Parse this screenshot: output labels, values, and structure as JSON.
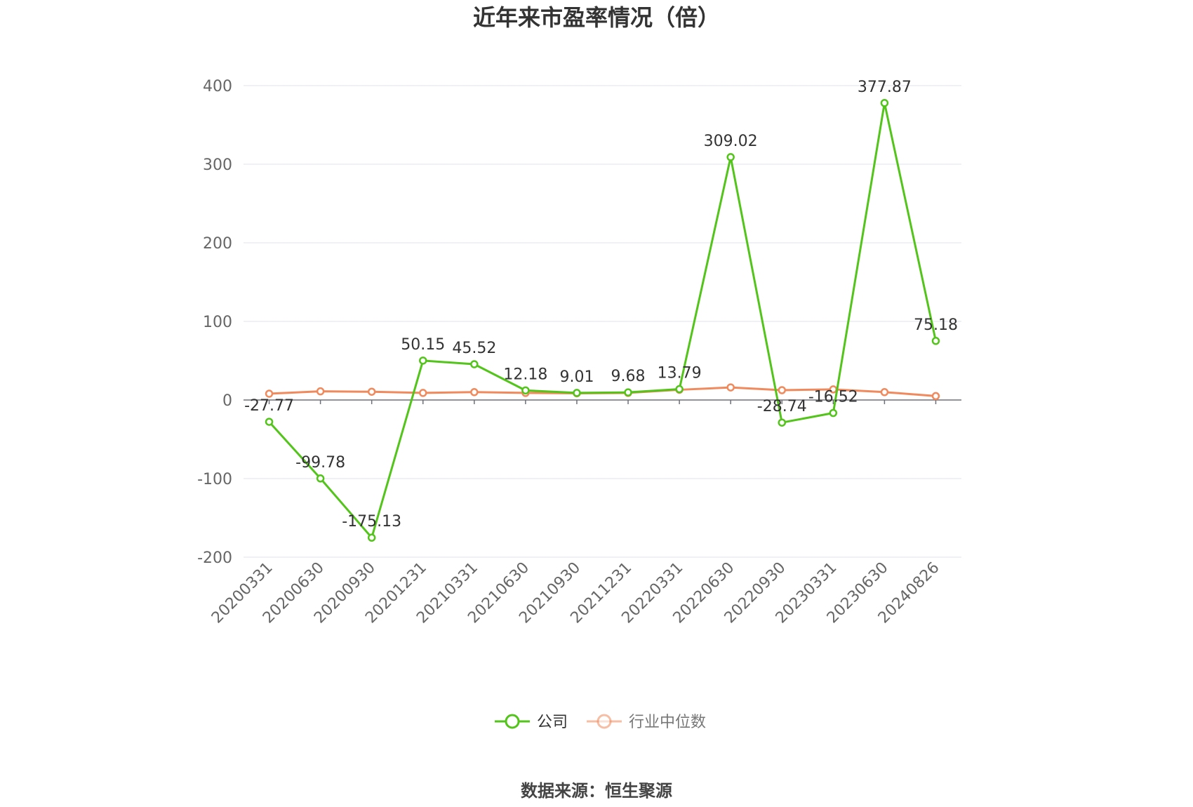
{
  "chart_data": {
    "type": "line",
    "title": "近年来市盈率情况（倍）",
    "categories": [
      "20200331",
      "20200630",
      "20200930",
      "20201231",
      "20210331",
      "20210630",
      "20210930",
      "20211231",
      "20220331",
      "20220630",
      "20220930",
      "20230331",
      "20230630",
      "20240826"
    ],
    "ylim": [
      -200,
      400
    ],
    "yticks": [
      -200,
      -100,
      0,
      100,
      200,
      300,
      400
    ],
    "grid": true,
    "legend_position": "bottom",
    "series": [
      {
        "name": "公司",
        "color": "#52c41a",
        "values": [
          -27.77,
          -99.78,
          -175.13,
          50.15,
          45.52,
          12.18,
          9.01,
          9.68,
          13.79,
          309.02,
          -28.74,
          -16.52,
          377.87,
          75.18
        ],
        "labels": [
          "-27.77",
          "-99.78",
          "-175.13",
          "50.15",
          "45.52",
          "12.18",
          "9.01",
          "9.68",
          "13.79",
          "309.02",
          "-28.74",
          "-16.52",
          "377.87",
          "75.18"
        ]
      },
      {
        "name": "行业中位数",
        "color": "#f08a5d",
        "values": [
          8,
          11,
          10.5,
          9,
          10,
          9,
          8.5,
          9,
          13,
          16,
          12.5,
          13.5,
          10,
          5
        ]
      }
    ],
    "source": "数据来源：恒生聚源"
  }
}
